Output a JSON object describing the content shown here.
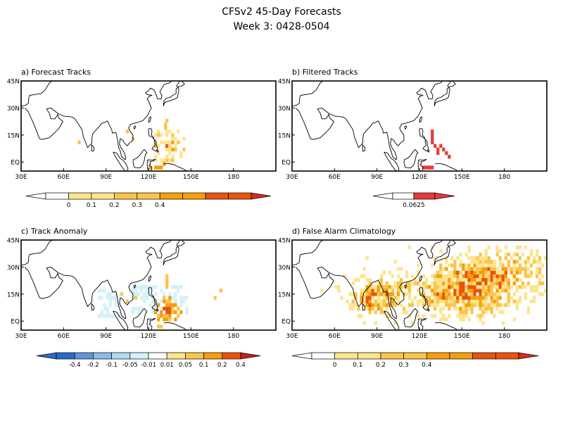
{
  "title_line1": "CFSv2 45-Day Forecasts",
  "title_line2": "Week 3: 0428-0504",
  "colors": {
    "seq_white": "#ffffff",
    "seq_1": "#fde58c",
    "seq_2": "#fbc44c",
    "seq_3": "#f59f0d",
    "seq_4": "#e8540e",
    "seq_5": "#d42c1d",
    "filter": "#e53b3b",
    "div_1": "#2a6bc8",
    "div_2": "#5f97dd",
    "div_3": "#8bbbe9",
    "div_4": "#b1dbf1",
    "div_5": "#d5f1f9",
    "div_6": "#ffffff",
    "div_7": "#fde58c",
    "div_8": "#fbc44c",
    "div_9": "#f59f0d",
    "div_10": "#e8540e",
    "div_11": "#c21e1e"
  },
  "axes": {
    "lat_labels": [
      "45N",
      "30N",
      "15N",
      "EQ"
    ],
    "lat_values": [
      45,
      30,
      15,
      0
    ],
    "lon_labels": [
      "30E",
      "60E",
      "90E",
      "120E",
      "150E",
      "180"
    ],
    "lon_values": [
      30,
      60,
      90,
      120,
      150,
      180
    ],
    "lon_range": [
      30,
      210
    ],
    "lat_range": [
      -5,
      45
    ]
  },
  "panels": [
    {
      "id": "a",
      "title": "a) Forecast Tracks",
      "colorbar_labels": [
        "0",
        "0.1",
        "0.2",
        "0.3",
        "0.4"
      ],
      "colorbar_values": [
        0,
        0.1,
        0.2,
        0.3,
        0.4
      ]
    },
    {
      "id": "b",
      "title": "b) Filtered Tracks",
      "colorbar_labels": [
        "0.0625"
      ],
      "colorbar_values": [
        0.0625
      ]
    },
    {
      "id": "c",
      "title": "c) Track Anomaly",
      "colorbar_labels": [
        "-0.4",
        "-0.2",
        "-0.1",
        "-0.05",
        "-0.01",
        "0.01",
        "0.05",
        "0.1",
        "0.2",
        "0.4"
      ],
      "colorbar_values": [
        -0.4,
        -0.2,
        -0.1,
        -0.05,
        -0.01,
        0.01,
        0.05,
        0.1,
        0.2,
        0.4
      ]
    },
    {
      "id": "d",
      "title": "d) False Alarm Climatology",
      "colorbar_labels": [
        "0",
        "0.1",
        "0.2",
        "0.3",
        "0.4"
      ],
      "colorbar_values": [
        0,
        0.1,
        0.2,
        0.3,
        0.4
      ]
    }
  ]
}
